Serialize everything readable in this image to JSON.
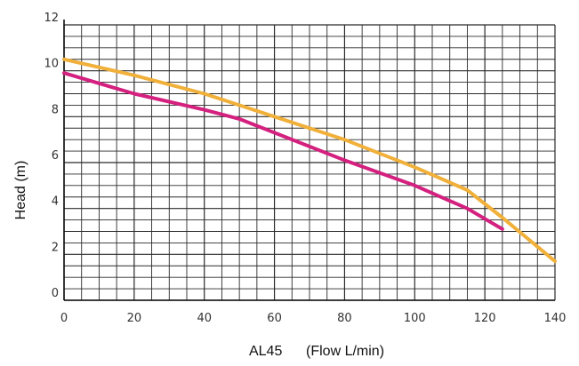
{
  "chart_data": {
    "type": "line",
    "title": "",
    "xlabel": "AL45      (Flow L/min)",
    "ylabel": "Head (m)",
    "xlim": [
      0,
      140
    ],
    "ylim": [
      0,
      12
    ],
    "x_ticks": [
      "0",
      "20",
      "40",
      "60",
      "80",
      "100",
      "120",
      "140"
    ],
    "y_ticks": [
      "0",
      "2",
      "4",
      "6",
      "8",
      "10",
      "12"
    ],
    "grid": true,
    "legend": "none",
    "series": [
      {
        "color": "#f0b03a",
        "x": [
          0,
          20,
          40,
          60,
          80,
          100,
          115,
          125,
          140
        ],
        "y": [
          10.5,
          9.8,
          9.0,
          8.0,
          7.0,
          5.8,
          4.8,
          3.6,
          1.7
        ]
      },
      {
        "color": "#d4217f",
        "x": [
          0,
          20,
          40,
          50,
          60,
          80,
          100,
          115,
          125
        ],
        "y": [
          9.9,
          9.0,
          8.3,
          7.9,
          7.3,
          6.1,
          5.0,
          4.0,
          3.1
        ]
      }
    ]
  }
}
